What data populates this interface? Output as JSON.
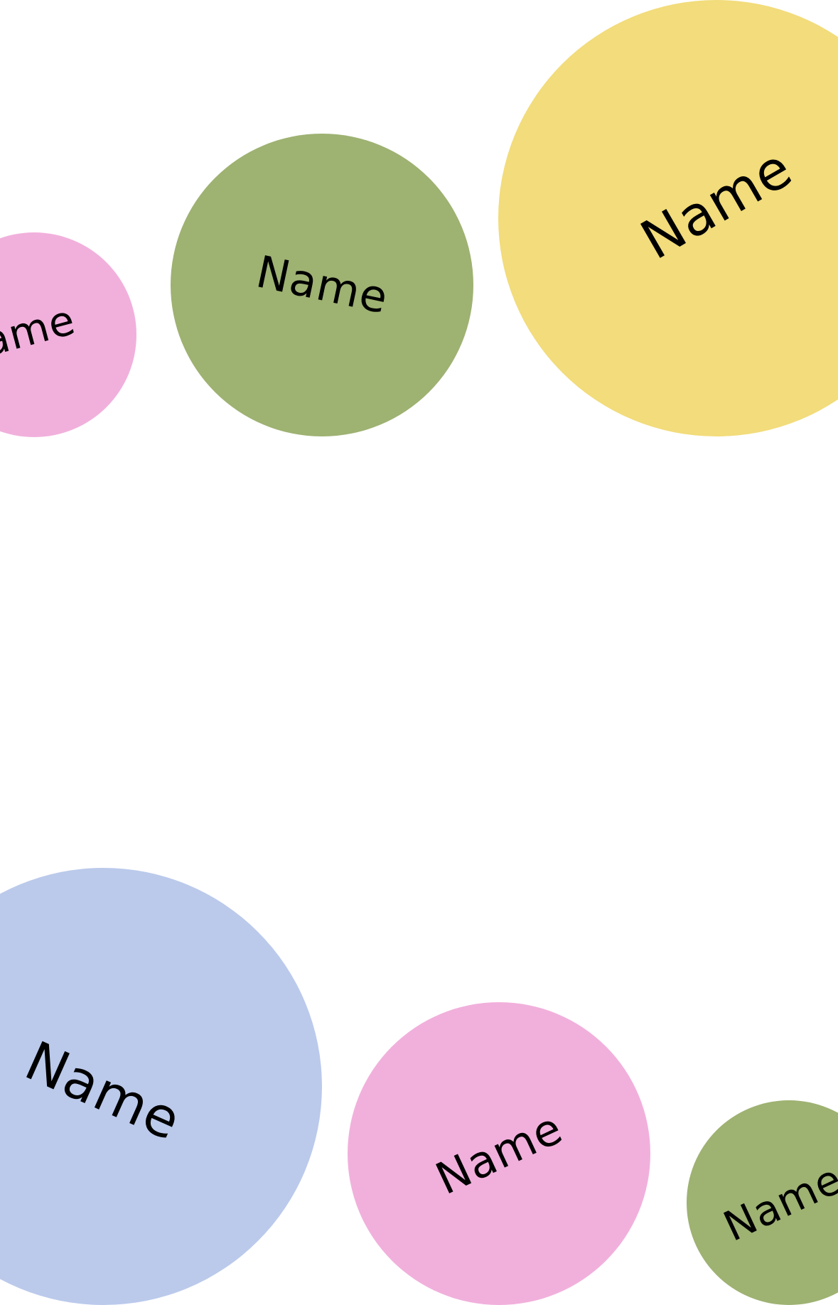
{
  "bubbles": [
    {
      "label": "Name",
      "color": "#F1B0DC"
    },
    {
      "label": "Name",
      "color": "#9EB272"
    },
    {
      "label": "Name",
      "color": "#F2DC7B"
    },
    {
      "label": "Name",
      "color": "#BBCAEB"
    },
    {
      "label": "Name",
      "color": "#F1B0DC"
    },
    {
      "label": "Name",
      "color": "#9EB272"
    }
  ]
}
